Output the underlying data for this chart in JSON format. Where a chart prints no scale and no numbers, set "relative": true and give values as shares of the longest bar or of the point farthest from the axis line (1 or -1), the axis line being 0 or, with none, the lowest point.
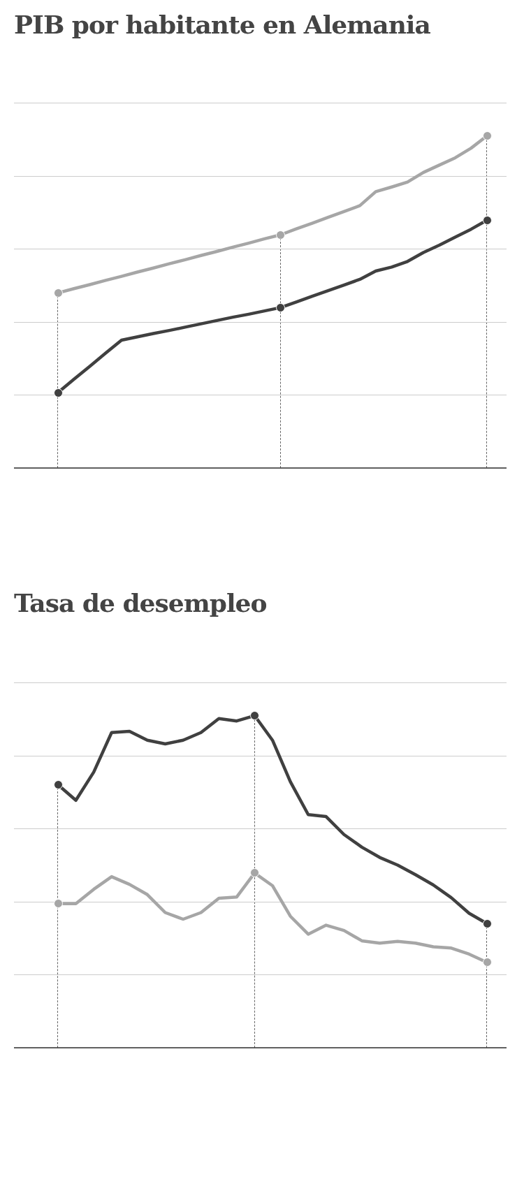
{
  "chart_data": [
    {
      "type": "line",
      "title": "PIB por habitante en Alemania",
      "relative": true,
      "grid": "y",
      "tick_labels": false,
      "legend": false,
      "marker": "none",
      "line_style": "solid",
      "categories": [
        null,
        null,
        null,
        null,
        null,
        null,
        null,
        null,
        null,
        null,
        null,
        null,
        null,
        null,
        null,
        null,
        null,
        null,
        null,
        null,
        null,
        null,
        null,
        null,
        null,
        null,
        null,
        null
      ],
      "series": [
        {
          "color": "#a6a6a6",
          "values": [
            0.527,
            0.54,
            0.552,
            0.565,
            0.577,
            0.59,
            0.602,
            0.615,
            0.627,
            0.64,
            0.652,
            0.665,
            0.677,
            0.69,
            0.702,
            0.72,
            0.737,
            0.755,
            0.772,
            0.79,
            0.832,
            0.846,
            0.861,
            0.89,
            0.912,
            0.934,
            0.963,
            1
          ]
        },
        {
          "color": "#404040",
          "values": [
            0.227,
            0.267,
            0.306,
            0.346,
            0.385,
            0.395,
            0.405,
            0.414,
            0.424,
            0.434,
            0.444,
            0.454,
            0.463,
            0.473,
            0.483,
            0.5,
            0.517,
            0.534,
            0.551,
            0.568,
            0.593,
            0.605,
            0.622,
            0.649,
            0.671,
            0.695,
            0.719,
            0.746
          ]
        }
      ]
    },
    {
      "type": "line",
      "title": "Tasa de desempleo",
      "relative": true,
      "grid": "y",
      "tick_labels": false,
      "legend": false,
      "marker": "none",
      "line_style": "solid",
      "categories": [
        null,
        null,
        null,
        null,
        null,
        null,
        null,
        null,
        null,
        null,
        null,
        null,
        null,
        null,
        null,
        null,
        null,
        null,
        null,
        null,
        null,
        null,
        null,
        null,
        null
      ],
      "series": [
        {
          "color": "#404040",
          "values": [
            0.792,
            0.745,
            0.83,
            0.949,
            0.953,
            0.926,
            0.915,
            0.926,
            0.949,
            0.991,
            0.984,
            1,
            0.926,
            0.801,
            0.702,
            0.696,
            0.642,
            0.604,
            0.573,
            0.55,
            0.521,
            0.49,
            0.452,
            0.405,
            0.374
          ]
        },
        {
          "color": "#a6a6a6",
          "values": [
            0.434,
            0.434,
            0.477,
            0.515,
            0.492,
            0.461,
            0.407,
            0.387,
            0.407,
            0.45,
            0.454,
            0.526,
            0.488,
            0.396,
            0.342,
            0.369,
            0.353,
            0.322,
            0.315,
            0.32,
            0.315,
            0.304,
            0.3,
            0.282,
            0.257
          ]
        }
      ]
    }
  ]
}
